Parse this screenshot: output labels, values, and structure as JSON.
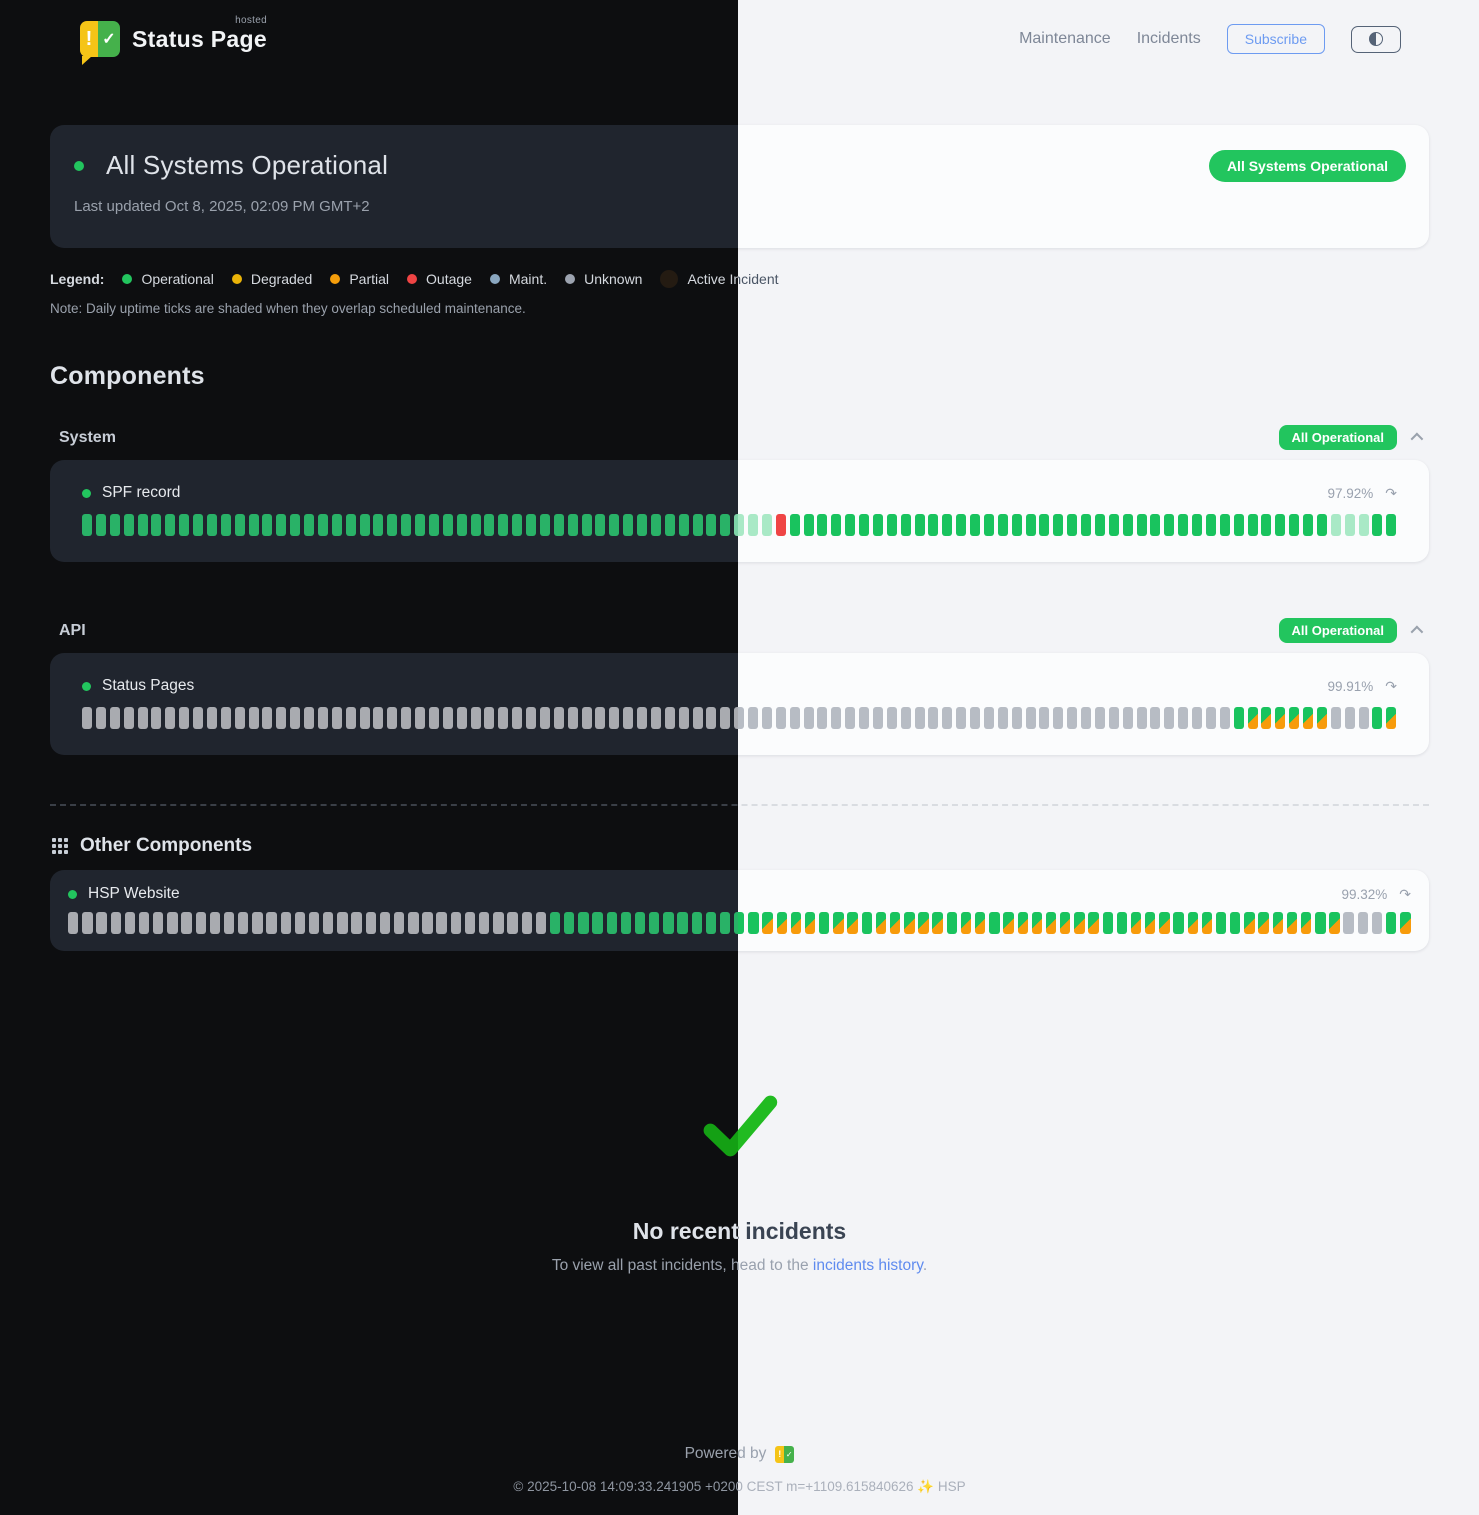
{
  "header": {
    "brand": {
      "name": "Status Page",
      "sup": "hosted"
    },
    "nav": [
      {
        "label": "Maintenance"
      },
      {
        "label": "Incidents"
      }
    ],
    "subscribe_label": "Subscribe",
    "theme_toggle_icon": "half-circle"
  },
  "banner": {
    "title": "All Systems Operational",
    "last_updated": "Last updated Oct 8, 2025, 02:09 PM GMT+2",
    "badge": "All Systems Operational"
  },
  "legend": {
    "label": "Legend:",
    "items": [
      {
        "label": "Operational",
        "color": "#22c55e"
      },
      {
        "label": "Degraded",
        "color": "#eab308"
      },
      {
        "label": "Partial",
        "color": "#f59e0b"
      },
      {
        "label": "Outage",
        "color": "#ef4444"
      },
      {
        "label": "Maint.",
        "color": "#8aa7c0"
      },
      {
        "label": "Unknown",
        "color": "#9ca3af"
      },
      {
        "label": "Active Incident",
        "color": "#241b12"
      }
    ],
    "note": "Note: Daily uptime ticks are shaded when they overlap scheduled maintenance."
  },
  "components": {
    "heading": "Components",
    "tick_legend": {
      "o": "operational",
      "f": "operational-shaded-maintenance",
      "x": "outage",
      "u": "unknown",
      "m": "operational-with-maintenance"
    },
    "groups": [
      {
        "name": "System",
        "badge": "All Operational",
        "items": [
          {
            "name": "SPF record",
            "uptime": "97.92%",
            "ticks": "ooooooooooooooooooooooooooooooooooooooooooooooofffxooooooooooooooooooooooooooooooooooooooofffoo"
          }
        ]
      },
      {
        "name": "API",
        "badge": "All Operational",
        "items": [
          {
            "name": "Status Pages",
            "uptime": "99.91%",
            "ticks": "uuuuuuuuuuuuuuuuuuuuuuuuuuuuuuuuuuuuuuuuuuuuuuuuuuuuuuuuuuuuuuuuuuuuuuuuuuuuuuuuuuuommmmmmuuuom"
          }
        ]
      }
    ],
    "other": {
      "title": "Other Components",
      "items": [
        {
          "name": "HSP Website",
          "uptime": "99.32%",
          "ticks": "uuuuuuuuuuuuuuuuuuuuuuuuuuuuuuuuuuooooooooooooooommmmommommmmmommommmmmmmoommmommoommmmmomuuuom"
        }
      ]
    }
  },
  "incidents": {
    "title": "No recent incidents",
    "subtitle_prefix": "To view all past incidents, head to the ",
    "link_text": "incidents history",
    "subtitle_suffix": "."
  },
  "footer": {
    "powered_by": "Powered by",
    "copyright": "© 2025-10-08 14:09:33.241905 +0200 CEST m=+1109.615840626 ✨ HSP"
  }
}
